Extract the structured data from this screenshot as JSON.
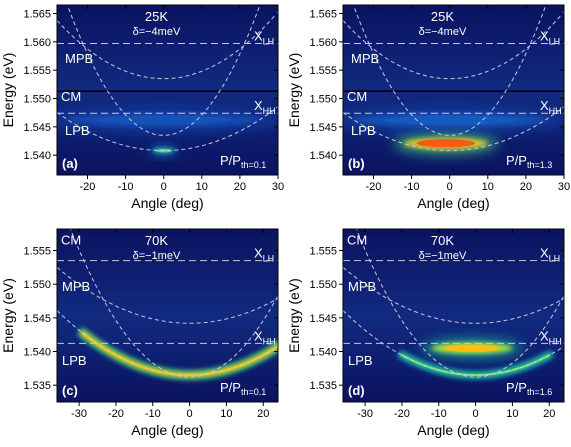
{
  "chart_data": [
    {
      "type": "heatmap",
      "panel": "(a)",
      "temperature": "25K",
      "detuning": "δ=−4meV",
      "power_main": "P/P",
      "power_sub": "th=0.1",
      "xlabel": "Angle (deg)",
      "ylabel": "Energy (eV)",
      "xlim": [
        -28,
        30
      ],
      "ylim": [
        1.5365,
        1.5665
      ],
      "xticks": [
        -20,
        -10,
        0,
        10,
        20,
        30
      ],
      "yticks": [
        1.54,
        1.545,
        1.55,
        1.555,
        1.56,
        1.565
      ],
      "xtick_labels": [
        "-20",
        "-10",
        "0",
        "10",
        "20",
        "30"
      ],
      "ytick_labels": [
        "1.540",
        "1.545",
        "1.550",
        "1.555",
        "1.560",
        "1.565"
      ],
      "levels": [
        {
          "label": "X",
          "sub": "LH",
          "energy": 1.5597
        },
        {
          "label": "CM",
          "sub": "",
          "energy": 1.5513,
          "solid": true
        },
        {
          "label": "X",
          "sub": "HH",
          "energy": 1.5474
        }
      ],
      "curves": [
        {
          "label": "MPB",
          "min_angle": 0,
          "min_energy": 1.5535,
          "curvature": 1.31e-05
        },
        {
          "label": "LPB",
          "min_angle": 0,
          "min_energy": 1.5408,
          "curvature": 8.6e-06
        },
        {
          "label": "",
          "min_angle": 0,
          "min_energy": 1.5435,
          "curvature": 3.6e-05
        }
      ],
      "emission": [
        {
          "angle": 0,
          "energy": 1.5408,
          "angle_width": 6,
          "energy_width": 0.00025,
          "intensity": 0.55
        },
        {
          "angle": 0,
          "energy": 1.5462,
          "angle_width": 50,
          "energy_width": 0.0009,
          "intensity": 0.12
        }
      ],
      "curve_labels": [
        "MPB",
        "CM",
        "LPB"
      ]
    },
    {
      "type": "heatmap",
      "panel": "(b)",
      "temperature": "25K",
      "detuning": "δ=−4meV",
      "power_main": "P/P",
      "power_sub": "th=1.3",
      "xlabel": "Angle (deg)",
      "ylabel": "Energy (eV)",
      "xlim": [
        -28,
        30
      ],
      "ylim": [
        1.5365,
        1.5665
      ],
      "xticks": [
        -20,
        -10,
        0,
        10,
        20,
        30
      ],
      "yticks": [
        1.54,
        1.545,
        1.55,
        1.555,
        1.56,
        1.565
      ],
      "xtick_labels": [
        "-20",
        "-10",
        "0",
        "10",
        "20",
        "30"
      ],
      "ytick_labels": [
        "1.540",
        "1.545",
        "1.550",
        "1.555",
        "1.560",
        "1.565"
      ],
      "levels": [
        {
          "label": "X",
          "sub": "LH",
          "energy": 1.5597
        },
        {
          "label": "CM",
          "sub": "",
          "energy": 1.5513,
          "solid": true
        },
        {
          "label": "X",
          "sub": "HH",
          "energy": 1.5474
        }
      ],
      "curves": [
        {
          "label": "MPB",
          "min_angle": 0,
          "min_energy": 1.5535,
          "curvature": 1.31e-05
        },
        {
          "label": "LPB",
          "min_angle": 0,
          "min_energy": 1.5408,
          "curvature": 8.6e-06
        },
        {
          "label": "",
          "min_angle": 0,
          "min_energy": 1.5435,
          "curvature": 3.6e-05
        }
      ],
      "emission": [
        {
          "angle": -1,
          "energy": 1.5421,
          "angle_width": 22,
          "energy_width": 0.0008,
          "intensity": 1.0
        },
        {
          "angle": 0,
          "energy": 1.5462,
          "angle_width": 50,
          "energy_width": 0.0009,
          "intensity": 0.15
        }
      ],
      "curve_labels": [
        "MPB",
        "CM",
        "LPB"
      ]
    },
    {
      "type": "heatmap",
      "panel": "(c)",
      "temperature": "70K",
      "detuning": "δ=−1meV",
      "power_main": "P/P",
      "power_sub": "th=0.1",
      "xlabel": "Angle (deg)",
      "ylabel": "Energy (eV)",
      "xlim": [
        -36,
        24
      ],
      "ylim": [
        1.5325,
        1.5582
      ],
      "xticks": [
        -30,
        -20,
        -10,
        0,
        10,
        20
      ],
      "yticks": [
        1.535,
        1.54,
        1.545,
        1.55,
        1.555
      ],
      "xtick_labels": [
        "-30",
        "-20",
        "-10",
        "0",
        "10",
        "20"
      ],
      "ytick_labels": [
        "1.535",
        "1.540",
        "1.545",
        "1.550",
        "1.555"
      ],
      "levels": [
        {
          "label": "X",
          "sub": "LH",
          "energy": 1.5535
        },
        {
          "label": "X",
          "sub": "HH",
          "energy": 1.5412
        }
      ],
      "curves": [
        {
          "label": "MPB",
          "min_angle": 0,
          "min_energy": 1.5442,
          "curvature": 6.4e-06
        },
        {
          "label": "LPB",
          "min_angle": 0,
          "min_energy": 1.5365,
          "curvature": 7.4e-06
        },
        {
          "label": "CM",
          "min_angle": 0,
          "min_energy": 1.5362,
          "curvature": 2.1e-05
        }
      ],
      "emission": [
        {
          "angle": 0,
          "energy": 1.5365,
          "angle_width": 58,
          "energy_width": 0.0007,
          "intensity": 0.85,
          "follow_curve": 1
        }
      ],
      "curve_labels": [
        "CM",
        "MPB",
        "LPB"
      ]
    },
    {
      "type": "heatmap",
      "panel": "(d)",
      "temperature": "70K",
      "detuning": "δ=−1meV",
      "power_main": "P/P",
      "power_sub": "th=1.6",
      "xlabel": "Angle (deg)",
      "ylabel": "Energy (eV)",
      "xlim": [
        -36,
        24
      ],
      "ylim": [
        1.5325,
        1.5582
      ],
      "xticks": [
        -30,
        -20,
        -10,
        0,
        10,
        20
      ],
      "yticks": [
        1.535,
        1.54,
        1.545,
        1.55,
        1.555
      ],
      "xtick_labels": [
        "-30",
        "-20",
        "-10",
        "0",
        "10",
        "20"
      ],
      "ytick_labels": [
        "1.535",
        "1.540",
        "1.545",
        "1.550",
        "1.555"
      ],
      "levels": [
        {
          "label": "X",
          "sub": "LH",
          "energy": 1.5535
        },
        {
          "label": "X",
          "sub": "HH",
          "energy": 1.5412
        }
      ],
      "curves": [
        {
          "label": "MPB",
          "min_angle": 0,
          "min_energy": 1.5442,
          "curvature": 6.4e-06
        },
        {
          "label": "LPB",
          "min_angle": 0,
          "min_energy": 1.5365,
          "curvature": 7.4e-06
        },
        {
          "label": "CM",
          "min_angle": 0,
          "min_energy": 1.5362,
          "curvature": 2.1e-05
        }
      ],
      "emission": [
        {
          "angle": -1,
          "energy": 1.5405,
          "angle_width": 22,
          "energy_width": 0.0006,
          "intensity": 0.85
        },
        {
          "angle": 0,
          "energy": 1.5365,
          "angle_width": 40,
          "energy_width": 0.0006,
          "intensity": 0.6,
          "follow_curve": 1
        }
      ],
      "curve_labels": [
        "CM",
        "MPB",
        "LPB"
      ]
    }
  ],
  "colors": {
    "background": "#101a64",
    "curve": "#c8c8dc",
    "solid_line": "#000000",
    "text": "#ffffff"
  }
}
